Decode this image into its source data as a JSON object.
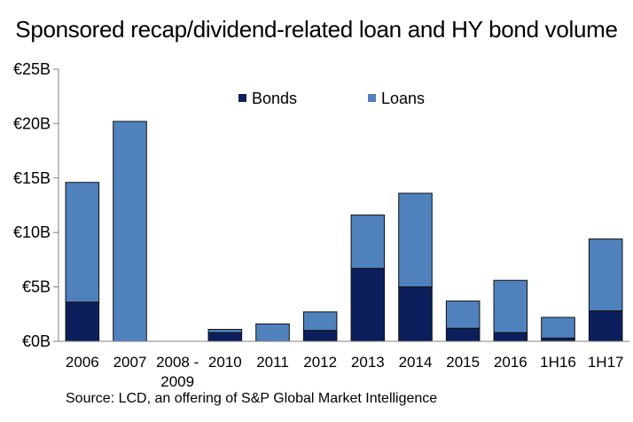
{
  "chart_data": {
    "type": "bar",
    "stacked": true,
    "title": "Sponsored recap/dividend-related loan and HY bond volume",
    "xlabel": "",
    "ylabel": "",
    "categories": [
      "2006",
      "2007",
      "2008 - 2009",
      "2010",
      "2011",
      "2012",
      "2013",
      "2014",
      "2015",
      "2016",
      "1H16",
      "1H17"
    ],
    "series": [
      {
        "name": "Bonds",
        "color": "#0c1f5c",
        "values": [
          3.6,
          0,
          0,
          0.8,
          0,
          1.0,
          6.7,
          5.0,
          1.2,
          0.8,
          0.3,
          2.8
        ]
      },
      {
        "name": "Loans",
        "color": "#4f81bd",
        "values": [
          11.0,
          20.2,
          0,
          0.3,
          1.6,
          1.7,
          4.9,
          8.6,
          2.5,
          4.8,
          1.9,
          6.6
        ]
      }
    ],
    "ylim": [
      0,
      25
    ],
    "yticks": [
      0,
      5,
      10,
      15,
      20,
      25
    ],
    "ytick_labels": [
      "€0B",
      "€5B",
      "€10B",
      "€15B",
      "€20B",
      "€25B"
    ],
    "grid": false,
    "legend_position": "top-center",
    "source": "Source: LCD, an offering of S&P Global Market Intelligence"
  }
}
